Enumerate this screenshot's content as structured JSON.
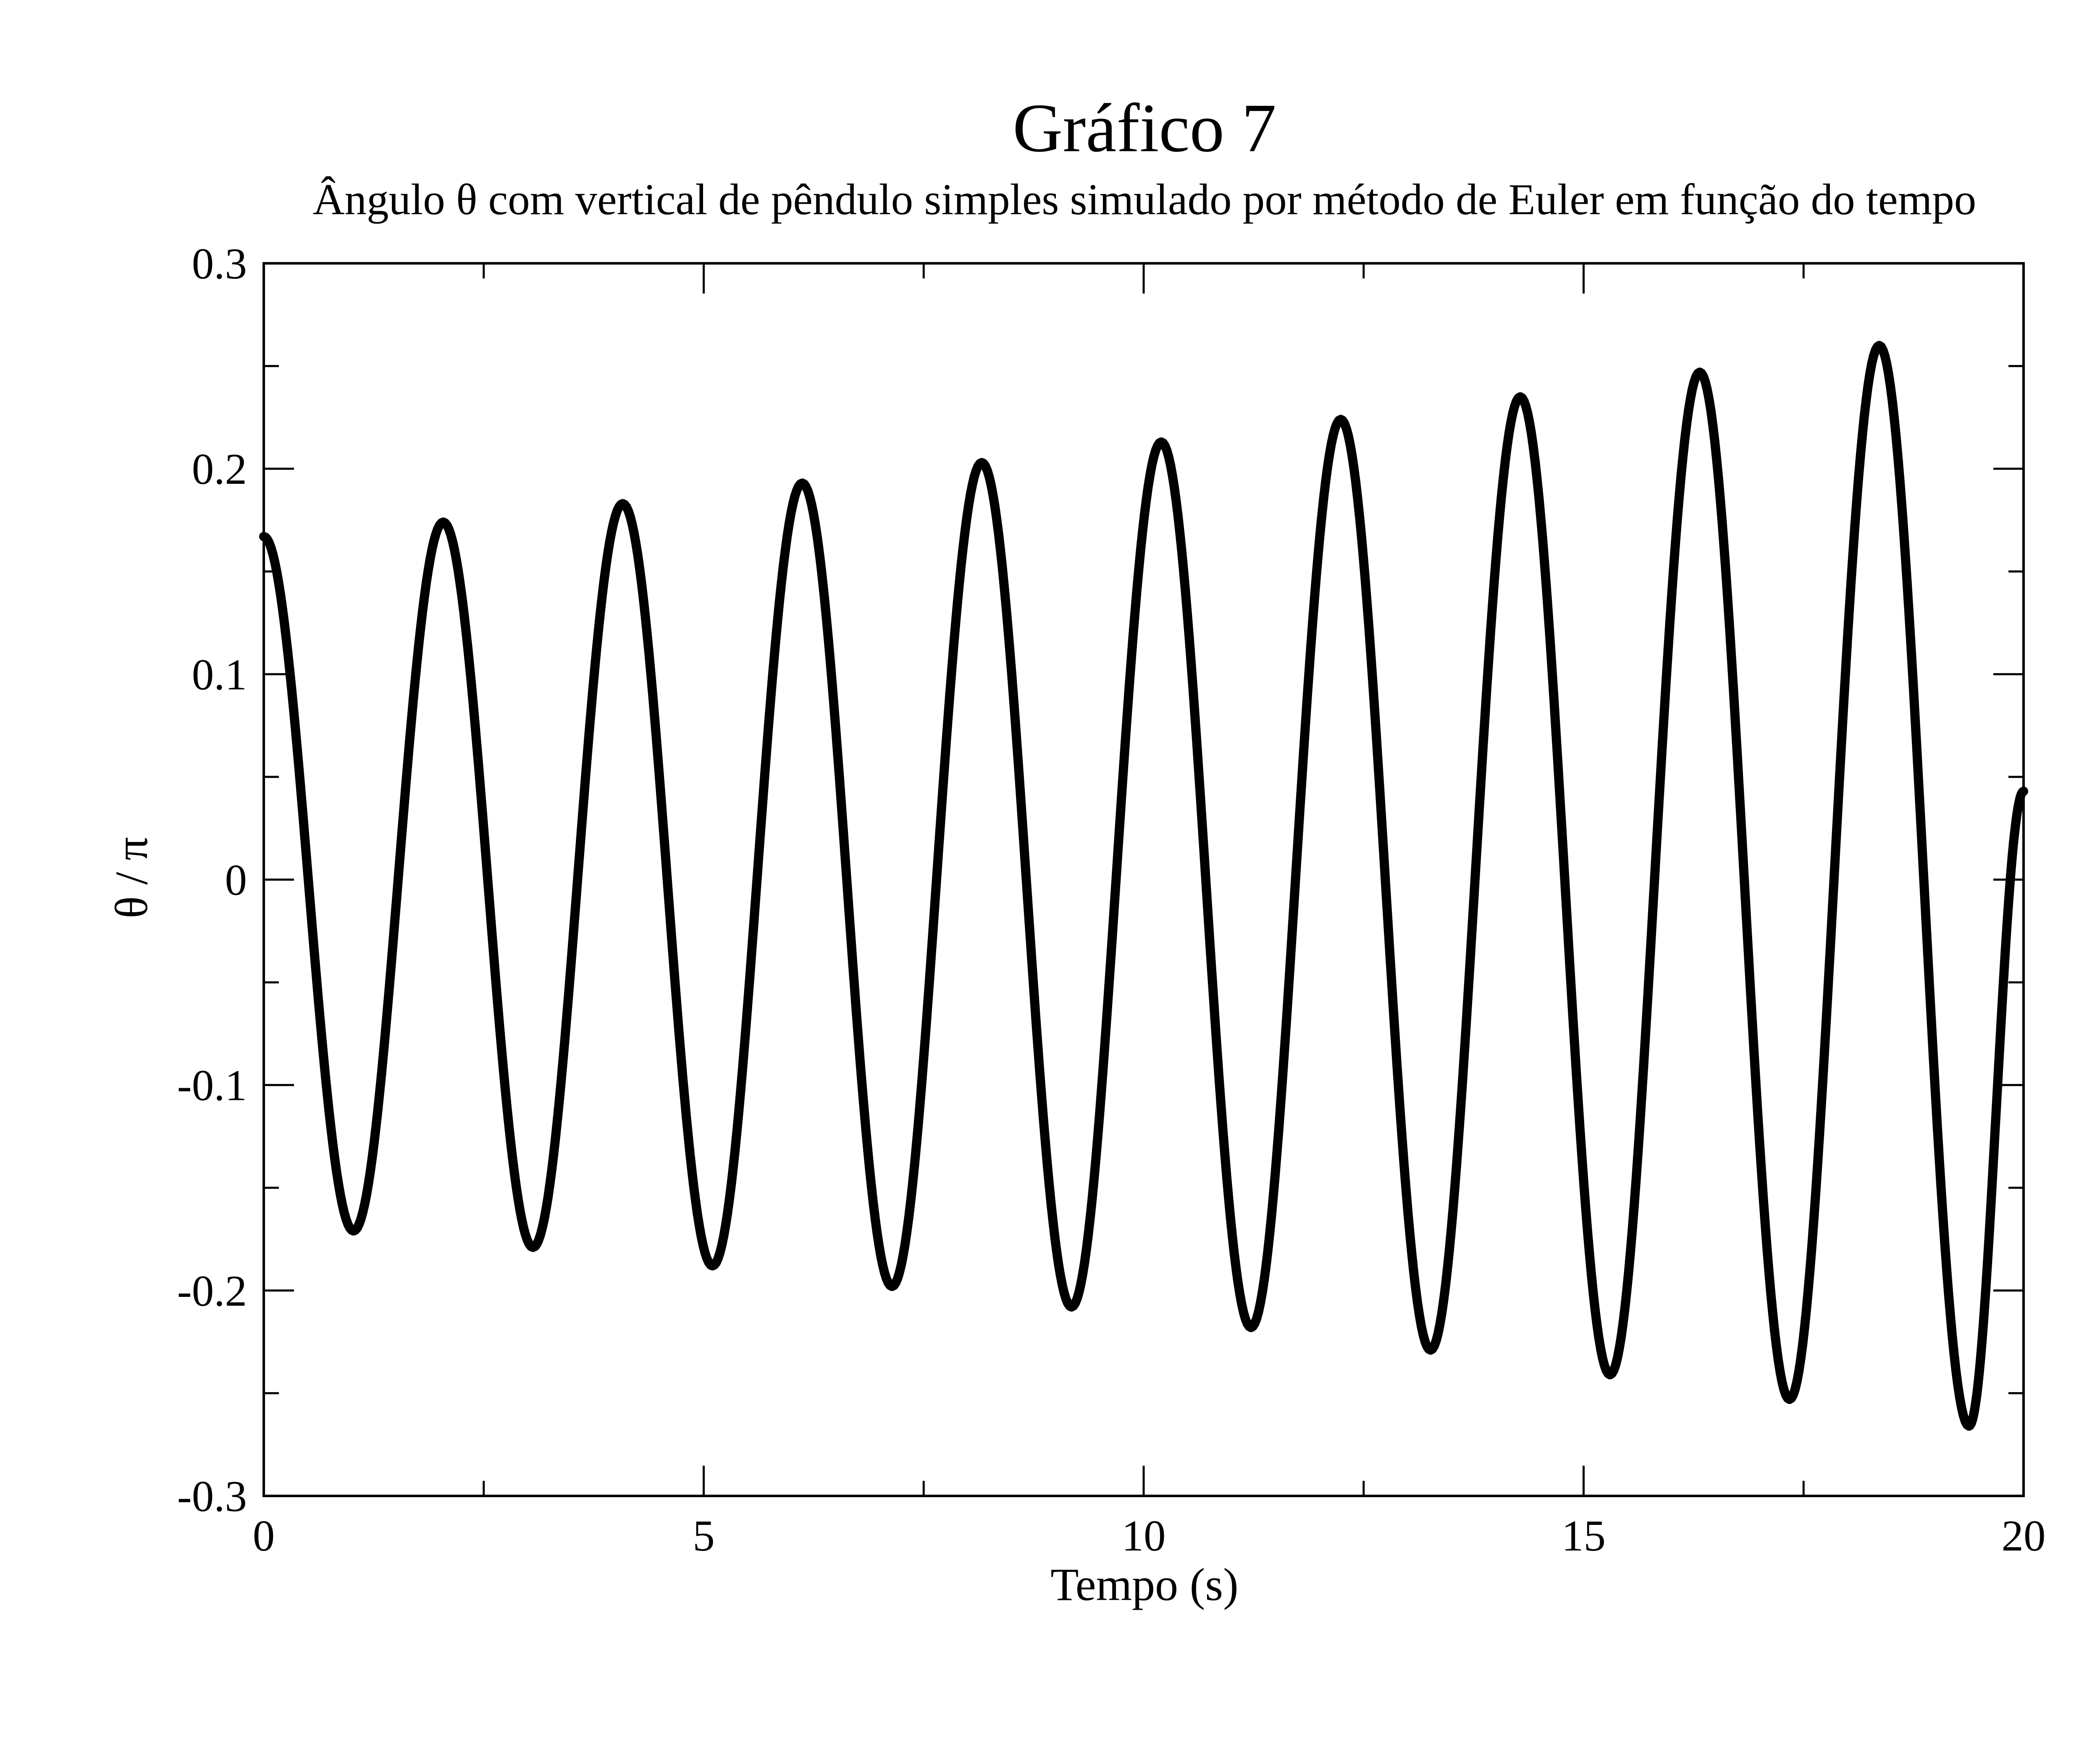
{
  "colors": {
    "background": "#ffffff",
    "axis": "#000000",
    "series": "#000000"
  },
  "chart_data": {
    "type": "line",
    "title": "Gráfico 7",
    "subtitle": "Ângulo θ com vertical de pêndulo simples simulado por método de Euler em função do tempo",
    "xlabel": "Tempo (s)",
    "ylabel": "θ / π",
    "xlim": [
      0,
      20
    ],
    "ylim": [
      -0.3,
      0.3
    ],
    "x_ticks": [
      0,
      5,
      10,
      15,
      20
    ],
    "x_tick_labels": [
      "0",
      "5",
      "10",
      "15",
      "20"
    ],
    "x_minor_ticks": [
      2.5,
      7.5,
      12.5,
      17.5
    ],
    "y_ticks": [
      -0.3,
      -0.2,
      -0.1,
      0,
      0.1,
      0.2,
      0.3
    ],
    "y_tick_labels": [
      "-0.3",
      "-0.2",
      "-0.1",
      "0",
      "0.1",
      "0.2",
      "0.3"
    ],
    "y_minor_ticks": [
      -0.25,
      -0.15,
      -0.05,
      0.05,
      0.15,
      0.25
    ],
    "grid": false,
    "legend": "none",
    "series": [
      {
        "x": [
          0,
          1.02,
          2.04,
          3.06,
          4.08,
          5.1,
          6.12,
          7.14,
          8.16,
          9.18,
          10.2,
          11.22,
          12.24,
          13.26,
          14.28,
          15.3,
          16.32,
          17.34,
          18.36,
          19.38,
          20
        ],
        "y": [
          0.167,
          -0.171,
          0.174,
          -0.179,
          0.183,
          -0.188,
          0.193,
          -0.198,
          0.203,
          -0.208,
          0.213,
          -0.218,
          0.224,
          -0.229,
          0.235,
          -0.241,
          0.247,
          -0.253,
          0.26,
          -0.266,
          0.043
        ]
      }
    ]
  }
}
